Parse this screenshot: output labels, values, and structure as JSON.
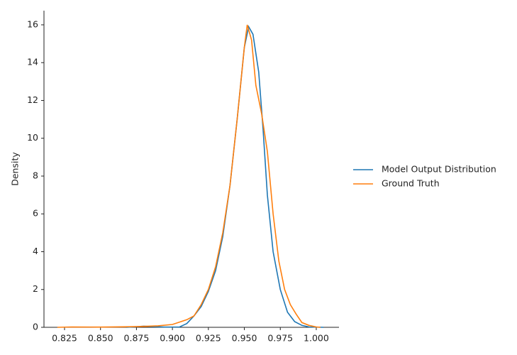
{
  "chart_data": {
    "type": "line",
    "y_label": "Density",
    "series": [
      {
        "name": "Model Output Distribution",
        "color": "#1f77b4",
        "x": [
          0.868,
          0.875,
          0.88,
          0.888,
          0.895,
          0.905,
          0.91,
          0.915,
          0.92,
          0.925,
          0.93,
          0.935,
          0.94,
          0.945,
          0.95,
          0.953,
          0.956,
          0.96,
          0.963,
          0.966,
          0.97,
          0.975,
          0.98,
          0.985,
          0.99,
          0.995,
          1.005
        ],
        "values": [
          0,
          0.03,
          0.06,
          0.03,
          0.01,
          0.02,
          0.2,
          0.6,
          1.1,
          1.9,
          3.0,
          4.8,
          7.5,
          11,
          14.8,
          15.9,
          15.5,
          13.5,
          10.5,
          7,
          4,
          2,
          0.8,
          0.3,
          0.1,
          0.02,
          0
        ]
      },
      {
        "name": "Ground Truth",
        "color": "#ff7f0e",
        "x": [
          0.82,
          0.83,
          0.85,
          0.87,
          0.88,
          0.89,
          0.9,
          0.91,
          0.915,
          0.92,
          0.925,
          0.93,
          0.935,
          0.94,
          0.945,
          0.95,
          0.952,
          0.955,
          0.958,
          0.962,
          0.966,
          0.97,
          0.974,
          0.978,
          0.982,
          0.986,
          0.99,
          0.995,
          1.0,
          1.003
        ],
        "values": [
          0,
          0.02,
          0.01,
          0.03,
          0.05,
          0.08,
          0.15,
          0.4,
          0.6,
          1.2,
          2.0,
          3.2,
          5.0,
          7.5,
          11,
          14.8,
          16,
          15.2,
          12.8,
          11.3,
          9.3,
          6,
          3.5,
          2,
          1.2,
          0.7,
          0.25,
          0.1,
          0.02,
          0
        ]
      }
    ],
    "xlim": [
      0.8107,
      1.0158
    ],
    "ylim": [
      0,
      16.75
    ],
    "xticks": [
      0.825,
      {
        "value": 0.85,
        "label": "0.850"
      },
      0.875,
      {
        "value": 0.9,
        "label": "0.900"
      },
      0.925,
      {
        "value": 0.95,
        "label": "0.950"
      },
      0.975,
      {
        "value": 1,
        "label": "1.000"
      }
    ],
    "yticks": [
      0,
      2,
      4,
      6,
      8,
      10,
      12,
      14,
      16
    ],
    "legend": "right"
  }
}
